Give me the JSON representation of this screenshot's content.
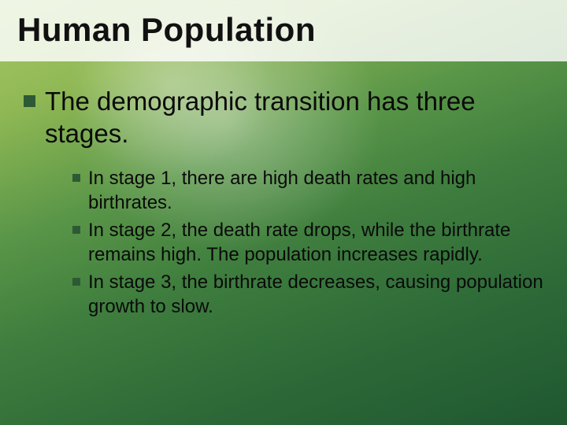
{
  "slide": {
    "title": "Human Population",
    "title_fontsize": 42,
    "title_color": "#111111",
    "title_band_bg": "rgba(255,255,255,0.82)",
    "background_gradient": {
      "type": "radial+linear",
      "colors": [
        "#a8c96a",
        "#8fb854",
        "#5a9648",
        "#3f7e3e",
        "#2e6b38",
        "#1f5730"
      ],
      "highlight_color": "rgba(255,255,255,0.35)"
    },
    "bullet_color": "#2d5a34",
    "text_color": "#0a0a0a",
    "lvl1_fontsize": 33,
    "lvl2_fontsize": 24,
    "points": [
      {
        "text": "The demographic transition has three stages.",
        "subpoints": [
          "In stage 1, there are high death rates and high birthrates.",
          "In stage 2, the death rate drops, while the birthrate remains high. The population increases rapidly.",
          "In stage 3, the birthrate decreases, causing population growth to slow."
        ]
      }
    ]
  }
}
